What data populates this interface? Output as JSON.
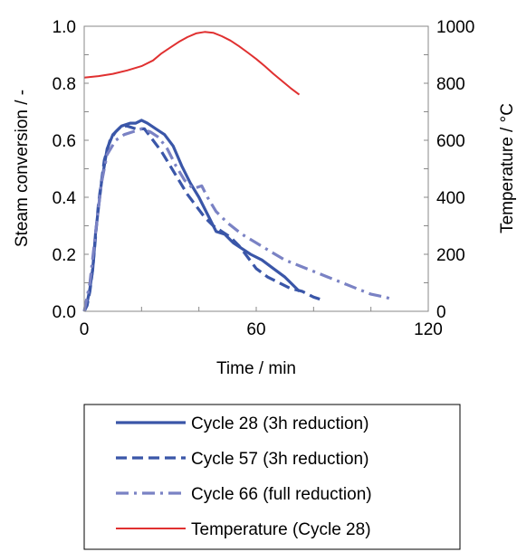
{
  "chart_data": {
    "type": "line",
    "xlabel": "Time / min",
    "ylabel_left": "Steam conversion / -",
    "ylabel_right": "Temperature / °C",
    "xlim": [
      0,
      120
    ],
    "ylim_left": [
      0,
      1.0
    ],
    "ylim_right": [
      0,
      1000
    ],
    "x_ticks": [
      "0",
      "60",
      "120"
    ],
    "y_left_ticks": [
      "0.0",
      "0.2",
      "0.4",
      "0.6",
      "0.8",
      "1.0"
    ],
    "y_right_ticks": [
      "0",
      "200",
      "400",
      "600",
      "800",
      "1000"
    ],
    "grid": false,
    "legend_position": "bottom",
    "series": [
      {
        "name": "Cycle 28 (3h reduction)",
        "axis": "left",
        "style": "solid",
        "color": "#3a56a8",
        "x": [
          0,
          1,
          2,
          3,
          4,
          6,
          8,
          10,
          13,
          16,
          18,
          20,
          22,
          25,
          28,
          31,
          34,
          37,
          40,
          43,
          46,
          49,
          52,
          55,
          58,
          62,
          66,
          70,
          73,
          75
        ],
        "y": [
          0.0,
          0.03,
          0.08,
          0.15,
          0.28,
          0.45,
          0.57,
          0.62,
          0.65,
          0.66,
          0.66,
          0.67,
          0.66,
          0.64,
          0.62,
          0.58,
          0.51,
          0.45,
          0.4,
          0.34,
          0.28,
          0.27,
          0.24,
          0.22,
          0.2,
          0.18,
          0.15,
          0.12,
          0.09,
          0.07
        ]
      },
      {
        "name": "Cycle 57 (3h reduction)",
        "axis": "left",
        "style": "dashed",
        "color": "#3a56a8",
        "x": [
          0,
          1,
          2,
          3,
          5,
          7,
          9,
          11,
          13,
          15,
          18,
          21,
          24,
          27,
          30,
          33,
          36,
          39,
          42,
          45,
          48,
          51,
          54,
          57,
          60,
          64,
          68,
          72,
          76,
          80,
          83
        ],
        "y": [
          0.0,
          0.02,
          0.07,
          0.15,
          0.38,
          0.53,
          0.6,
          0.63,
          0.65,
          0.65,
          0.64,
          0.64,
          0.6,
          0.56,
          0.51,
          0.46,
          0.41,
          0.37,
          0.33,
          0.3,
          0.28,
          0.26,
          0.23,
          0.19,
          0.15,
          0.12,
          0.1,
          0.08,
          0.07,
          0.05,
          0.04
        ]
      },
      {
        "name": "Cycle 66 (full reduction)",
        "axis": "left",
        "style": "dashdot",
        "color": "#7a82c4",
        "x": [
          0,
          2,
          4,
          6,
          8,
          11,
          14,
          17,
          20,
          23,
          26,
          29,
          32,
          35,
          38,
          41,
          43,
          46,
          50,
          55,
          60,
          65,
          70,
          75,
          80,
          85,
          90,
          95,
          100,
          105,
          108
        ],
        "y": [
          0.0,
          0.1,
          0.28,
          0.45,
          0.55,
          0.6,
          0.62,
          0.63,
          0.64,
          0.63,
          0.61,
          0.57,
          0.51,
          0.46,
          0.43,
          0.44,
          0.4,
          0.35,
          0.31,
          0.27,
          0.24,
          0.21,
          0.18,
          0.16,
          0.14,
          0.12,
          0.1,
          0.08,
          0.06,
          0.05,
          0.04
        ]
      },
      {
        "name": "Temperature (Cycle 28)",
        "axis": "right",
        "style": "solid-thin",
        "color": "#e03030",
        "x": [
          0,
          5,
          10,
          15,
          20,
          24,
          27,
          30,
          33,
          36,
          39,
          42,
          45,
          48,
          51,
          54,
          57,
          60,
          63,
          66,
          69,
          72,
          75
        ],
        "y": [
          820,
          825,
          833,
          845,
          860,
          880,
          905,
          925,
          945,
          962,
          975,
          980,
          977,
          965,
          950,
          930,
          908,
          885,
          860,
          833,
          808,
          783,
          760
        ]
      }
    ]
  }
}
